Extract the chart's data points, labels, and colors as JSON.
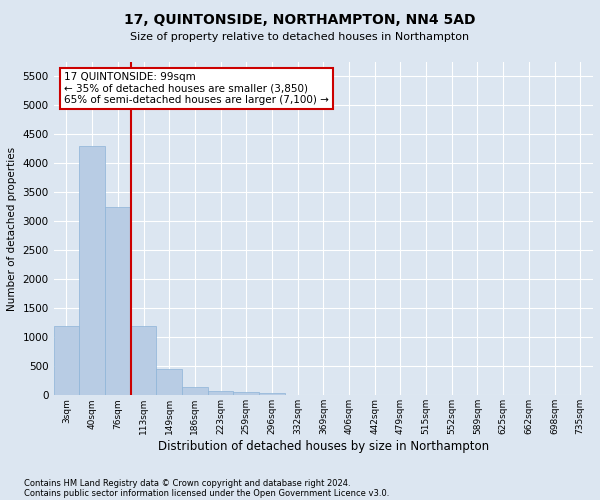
{
  "title": "17, QUINTONSIDE, NORTHAMPTON, NN4 5AD",
  "subtitle": "Size of property relative to detached houses in Northampton",
  "xlabel": "Distribution of detached houses by size in Northampton",
  "ylabel": "Number of detached properties",
  "footnote1": "Contains HM Land Registry data © Crown copyright and database right 2024.",
  "footnote2": "Contains public sector information licensed under the Open Government Licence v3.0.",
  "annotation_title": "17 QUINTONSIDE: 99sqm",
  "annotation_line1": "← 35% of detached houses are smaller (3,850)",
  "annotation_line2": "65% of semi-detached houses are larger (7,100) →",
  "bar_color": "#b8cce4",
  "bar_edge_color": "#8db4d8",
  "vline_color": "#cc0000",
  "annotation_box_edgecolor": "#cc0000",
  "annotation_box_facecolor": "#ffffff",
  "background_color": "#dce6f1",
  "grid_color": "#ffffff",
  "categories": [
    "3sqm",
    "40sqm",
    "76sqm",
    "113sqm",
    "149sqm",
    "186sqm",
    "223sqm",
    "259sqm",
    "296sqm",
    "332sqm",
    "369sqm",
    "406sqm",
    "442sqm",
    "479sqm",
    "515sqm",
    "552sqm",
    "589sqm",
    "625sqm",
    "662sqm",
    "698sqm",
    "735sqm"
  ],
  "values": [
    1200,
    4300,
    3250,
    1200,
    450,
    150,
    75,
    50,
    40,
    0,
    0,
    0,
    0,
    0,
    0,
    0,
    0,
    0,
    0,
    0,
    0
  ],
  "ylim": [
    0,
    5750
  ],
  "yticks": [
    0,
    500,
    1000,
    1500,
    2000,
    2500,
    3000,
    3500,
    4000,
    4500,
    5000,
    5500
  ],
  "vline_position": 2.5,
  "figsize": [
    6.0,
    5.0
  ],
  "dpi": 100
}
